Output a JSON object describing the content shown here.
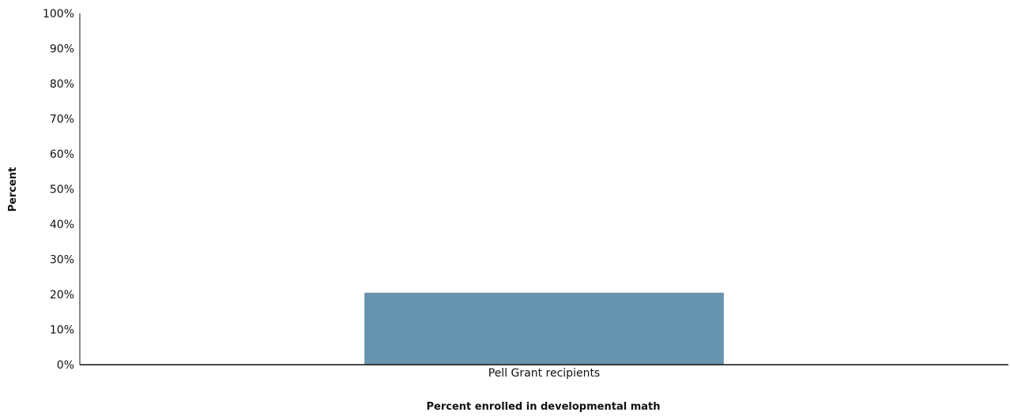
{
  "chart_data": {
    "type": "bar",
    "categories": [
      "Pell Grant recipients"
    ],
    "values": [
      20.5
    ],
    "ylim": [
      0,
      100
    ],
    "yticks": [
      0,
      10,
      20,
      30,
      40,
      50,
      60,
      70,
      80,
      90,
      100
    ],
    "ytick_labels": [
      "0%",
      "10%",
      "20%",
      "30%",
      "40%",
      "50%",
      "60%",
      "70%",
      "80%",
      "90%",
      "100%"
    ],
    "xlabel": "Percent enrolled in developmental math",
    "ylabel": "Percent",
    "grid": false,
    "legend": false,
    "bar_color": "#6794ae",
    "axis_color": "#111111"
  }
}
